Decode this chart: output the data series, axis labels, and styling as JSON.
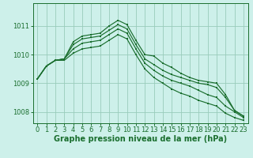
{
  "background_color": "#cdf0ea",
  "grid_color": "#99ccbb",
  "line_color": "#1a6e2e",
  "xlabel": "Graphe pression niveau de la mer (hPa)",
  "xlabel_fontsize": 7,
  "tick_fontsize": 6,
  "ylim": [
    1007.6,
    1011.8
  ],
  "xlim": [
    -0.5,
    23.5
  ],
  "yticks": [
    1008,
    1009,
    1010,
    1011
  ],
  "xticks": [
    0,
    1,
    2,
    3,
    4,
    5,
    6,
    7,
    8,
    9,
    10,
    11,
    12,
    13,
    14,
    15,
    16,
    17,
    18,
    19,
    20,
    21,
    22,
    23
  ],
  "series": [
    [
      1009.15,
      1009.6,
      1009.8,
      1009.85,
      1010.45,
      1010.65,
      1010.7,
      1010.75,
      1011.0,
      1011.2,
      1011.05,
      1010.5,
      1010.0,
      1009.95,
      1009.7,
      1009.55,
      1009.35,
      1009.2,
      1009.1,
      1009.05,
      1009.0,
      1008.6,
      1008.05,
      1007.85
    ],
    [
      1009.15,
      1009.6,
      1009.8,
      1009.85,
      1010.35,
      1010.55,
      1010.6,
      1010.65,
      1010.85,
      1011.05,
      1010.9,
      1010.35,
      1009.85,
      1009.65,
      1009.45,
      1009.3,
      1009.2,
      1009.1,
      1009.0,
      1008.95,
      1008.85,
      1008.5,
      1008.05,
      1007.85
    ],
    [
      1009.15,
      1009.6,
      1009.8,
      1009.85,
      1010.2,
      1010.4,
      1010.45,
      1010.5,
      1010.7,
      1010.9,
      1010.75,
      1010.2,
      1009.7,
      1009.45,
      1009.25,
      1009.1,
      1009.0,
      1008.9,
      1008.75,
      1008.6,
      1008.5,
      1008.2,
      1008.0,
      1007.8
    ],
    [
      1009.15,
      1009.6,
      1009.8,
      1009.8,
      1010.05,
      1010.2,
      1010.25,
      1010.3,
      1010.5,
      1010.7,
      1010.55,
      1010.0,
      1009.5,
      1009.2,
      1009.0,
      1008.8,
      1008.65,
      1008.55,
      1008.4,
      1008.3,
      1008.2,
      1007.95,
      1007.8,
      1007.7
    ]
  ]
}
